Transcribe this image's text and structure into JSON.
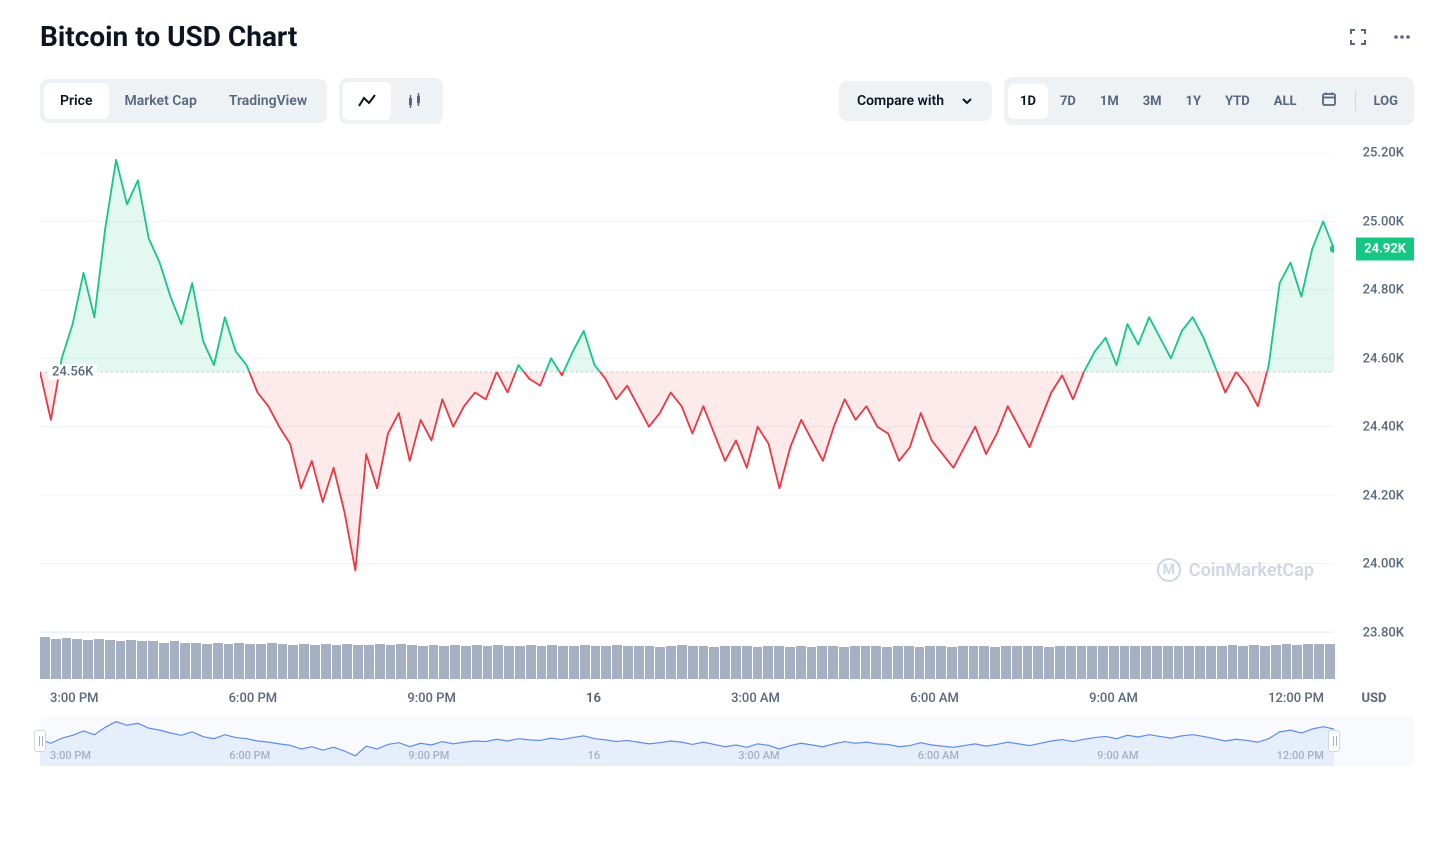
{
  "title": "Bitcoin to USD Chart",
  "tabs": {
    "price": "Price",
    "marketcap": "Market Cap",
    "tradingview": "TradingView"
  },
  "compare_label": "Compare with",
  "ranges": {
    "d1": "1D",
    "d7": "7D",
    "m1": "1M",
    "m3": "3M",
    "y1": "1Y",
    "ytd": "YTD",
    "all": "ALL",
    "log": "LOG"
  },
  "watermark": "CoinMarketCap",
  "y_axis_label": "USD",
  "chart": {
    "type": "line-baseline",
    "baseline": 24.56,
    "baseline_label": "24.56K",
    "current": 24.92,
    "current_label": "24.92K",
    "ylim": [
      23.8,
      25.2
    ],
    "yticks": [
      25.2,
      25.0,
      24.8,
      24.6,
      24.4,
      24.2,
      24.0,
      23.8
    ],
    "ytick_labels": [
      "25.20K",
      "25.00K",
      "24.80K",
      "24.60K",
      "24.40K",
      "24.20K",
      "24.00K",
      "23.80K"
    ],
    "xticks": [
      "3:00 PM",
      "6:00 PM",
      "9:00 PM",
      "16",
      "3:00 AM",
      "6:00 AM",
      "9:00 AM",
      "12:00 PM"
    ],
    "colors": {
      "up": "#16c784",
      "down": "#ea3943",
      "up_fill": "rgba(22,199,132,0.12)",
      "down_fill": "rgba(234,57,67,0.10)",
      "grid": "#eff2f5",
      "baseline_grid": "#c0c6d0",
      "text": "#58667e",
      "volume": "#a6b0c3",
      "nav_line": "#5b8def"
    },
    "line_width": 1.8,
    "series": [
      24.56,
      24.42,
      24.6,
      24.7,
      24.85,
      24.72,
      24.98,
      25.18,
      25.05,
      25.12,
      24.95,
      24.88,
      24.78,
      24.7,
      24.82,
      24.65,
      24.58,
      24.72,
      24.62,
      24.58,
      24.5,
      24.46,
      24.4,
      24.35,
      24.22,
      24.3,
      24.18,
      24.28,
      24.15,
      23.98,
      24.32,
      24.22,
      24.38,
      24.44,
      24.3,
      24.42,
      24.36,
      24.48,
      24.4,
      24.46,
      24.5,
      24.48,
      24.56,
      24.5,
      24.58,
      24.54,
      24.52,
      24.6,
      24.55,
      24.62,
      24.68,
      24.58,
      24.54,
      24.48,
      24.52,
      24.46,
      24.4,
      24.44,
      24.5,
      24.46,
      24.38,
      24.46,
      24.38,
      24.3,
      24.36,
      24.28,
      24.4,
      24.35,
      24.22,
      24.34,
      24.42,
      24.36,
      24.3,
      24.4,
      24.48,
      24.42,
      24.46,
      24.4,
      24.38,
      24.3,
      24.34,
      24.44,
      24.36,
      24.32,
      24.28,
      24.34,
      24.4,
      24.32,
      24.38,
      24.46,
      24.4,
      24.34,
      24.42,
      24.5,
      24.55,
      24.48,
      24.56,
      24.62,
      24.66,
      24.58,
      24.7,
      24.64,
      24.72,
      24.66,
      24.6,
      24.68,
      24.72,
      24.66,
      24.58,
      24.5,
      24.56,
      24.52,
      24.46,
      24.58,
      24.82,
      24.88,
      24.78,
      24.92,
      25.0,
      24.92
    ],
    "volume": [
      38,
      36,
      37,
      36,
      35,
      36,
      35,
      34,
      35,
      34,
      34,
      33,
      34,
      33,
      33,
      32,
      33,
      32,
      33,
      32,
      32,
      33,
      32,
      31,
      32,
      31,
      32,
      31,
      32,
      31,
      31,
      32,
      31,
      32,
      31,
      30,
      31,
      30,
      31,
      30,
      31,
      30,
      31,
      30,
      30,
      31,
      30,
      31,
      30,
      30,
      31,
      30,
      30,
      31,
      30,
      30,
      30,
      29,
      30,
      31,
      30,
      30,
      29,
      30,
      30,
      30,
      29,
      30,
      30,
      29,
      30,
      29,
      30,
      30,
      29,
      30,
      30,
      30,
      29,
      30,
      30,
      29,
      30,
      30,
      29,
      30,
      30,
      30,
      29,
      30,
      30,
      30,
      30,
      29,
      30,
      30,
      30,
      30,
      30,
      30,
      30,
      30,
      30,
      30,
      30,
      30,
      30,
      30,
      30,
      30,
      31,
      30,
      31,
      30,
      31,
      32,
      31,
      32,
      32,
      32
    ]
  }
}
